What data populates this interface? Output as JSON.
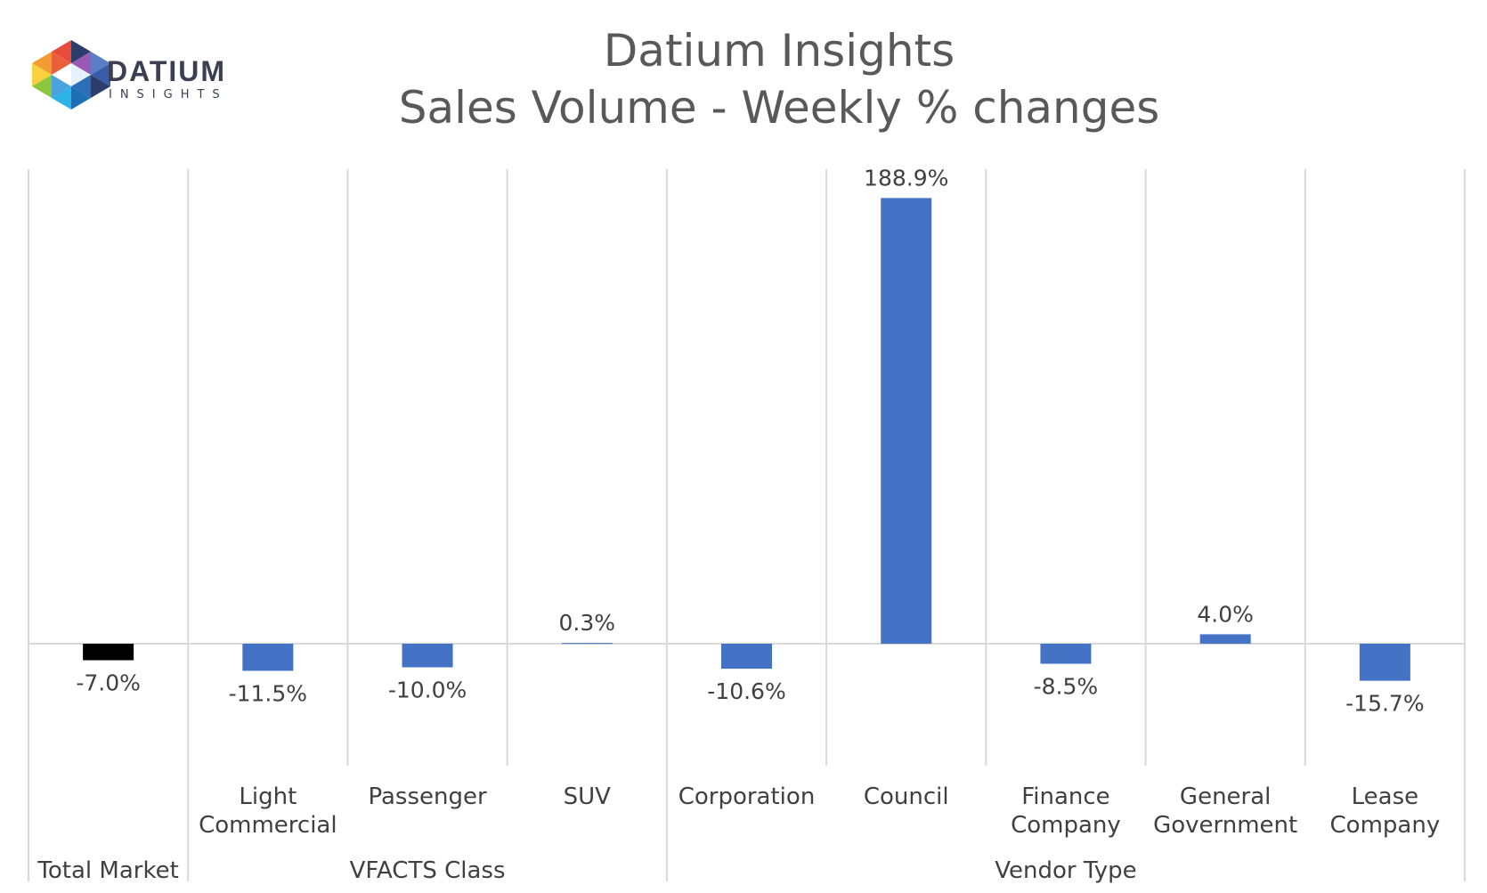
{
  "logo": {
    "word": "DATIUM",
    "sub": "INSIGHTS",
    "colors": [
      "#e84a3c",
      "#f39c33",
      "#f7d23e",
      "#8cc63f",
      "#2bb3e6",
      "#1f6fb5",
      "#2a3d6b",
      "#9b59b6"
    ]
  },
  "chart_data": {
    "type": "bar",
    "title": "Datium Insights",
    "subtitle": "Sales Volume - Weekly % changes",
    "categories": [
      "Total Market",
      "Light Commercial",
      "Passenger",
      "SUV",
      "Corporation",
      "Council",
      "Finance Company",
      "General Government",
      "Lease Company"
    ],
    "values": [
      -7.0,
      -11.5,
      -10.0,
      0.3,
      -10.6,
      188.9,
      -8.5,
      4.0,
      -15.7
    ],
    "data_labels": [
      "-7.0%",
      "-11.5%",
      "-10.0%",
      "0.3%",
      "-10.6%",
      "188.9%",
      "-8.5%",
      "4.0%",
      "-15.7%"
    ],
    "category_label_lines": [
      [
        ""
      ],
      [
        "Light",
        "Commercial"
      ],
      [
        "Passenger"
      ],
      [
        "SUV"
      ],
      [
        "Corporation"
      ],
      [
        "Council"
      ],
      [
        "Finance",
        "Company"
      ],
      [
        "General",
        "Government"
      ],
      [
        "Lease",
        "Company"
      ]
    ],
    "groups": [
      {
        "label": "Total Market",
        "categories": [
          "Total Market"
        ]
      },
      {
        "label": "VFACTS Class",
        "categories": [
          "Light Commercial",
          "Passenger",
          "SUV"
        ]
      },
      {
        "label": "Vendor Type",
        "categories": [
          "Corporation",
          "Council",
          "Finance Company",
          "General Government",
          "Lease Company"
        ]
      }
    ],
    "bar_colors": [
      "#000000",
      "#4472c4",
      "#4472c4",
      "#4472c4",
      "#4472c4",
      "#4472c4",
      "#4472c4",
      "#4472c4",
      "#4472c4"
    ],
    "ylim": [
      -50,
      200
    ],
    "grid": "vertical category separators",
    "legend": "none"
  }
}
